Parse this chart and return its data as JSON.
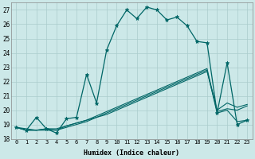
{
  "title": "",
  "xlabel": "Humidex (Indice chaleur)",
  "bg_color": "#cce8e8",
  "grid_color": "#b0d8d8",
  "line_color": "#006666",
  "ylim": [
    18,
    27.5
  ],
  "xlim": [
    -0.5,
    23.5
  ],
  "yticks": [
    18,
    19,
    20,
    21,
    22,
    23,
    24,
    25,
    26,
    27
  ],
  "xticks": [
    0,
    1,
    2,
    3,
    4,
    5,
    6,
    7,
    8,
    9,
    10,
    11,
    12,
    13,
    14,
    15,
    16,
    17,
    18,
    19,
    20,
    21,
    22,
    23
  ],
  "series": [
    [
      18.8,
      18.6,
      19.5,
      18.7,
      18.4,
      19.4,
      19.5,
      22.5,
      20.5,
      24.2,
      25.9,
      27.0,
      26.4,
      27.2,
      27.0,
      26.3,
      26.5,
      25.9,
      24.8,
      24.7,
      19.8,
      23.3,
      19.0,
      19.3
    ],
    [
      18.8,
      18.7,
      18.6,
      18.7,
      18.6,
      18.9,
      19.1,
      19.3,
      19.5,
      19.7,
      20.0,
      20.3,
      20.6,
      20.9,
      21.2,
      21.5,
      21.8,
      22.1,
      22.4,
      22.7,
      20.0,
      20.5,
      20.2,
      20.4
    ],
    [
      18.8,
      18.6,
      18.6,
      18.7,
      18.7,
      18.9,
      19.1,
      19.3,
      19.6,
      19.9,
      20.2,
      20.5,
      20.8,
      21.1,
      21.4,
      21.7,
      22.0,
      22.3,
      22.6,
      22.9,
      19.9,
      20.1,
      20.0,
      20.3
    ],
    [
      18.8,
      18.6,
      18.6,
      18.6,
      18.6,
      18.8,
      19.0,
      19.2,
      19.5,
      19.8,
      20.1,
      20.4,
      20.7,
      21.0,
      21.3,
      21.6,
      21.9,
      22.2,
      22.5,
      22.8,
      19.8,
      20.0,
      19.2,
      19.3
    ]
  ]
}
